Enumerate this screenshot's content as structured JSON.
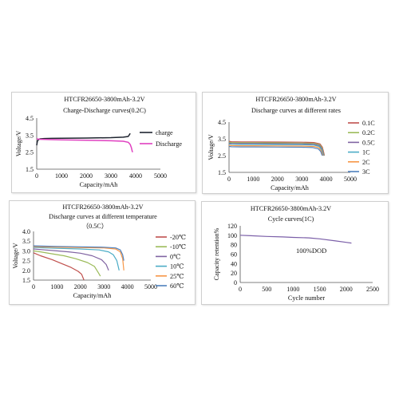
{
  "chart_data": [
    {
      "type": "line",
      "title": "HTCFR26650-3800mAh-3.2V",
      "subtitle": "Charge-Discharge curves(0.2C)",
      "xlabel": "Capacity/mAh",
      "ylabel": "Voltage/V",
      "xlim": [
        0,
        5000
      ],
      "ylim": [
        1.5,
        4.5
      ],
      "xticks": [
        "0",
        "1000",
        "2000",
        "3000",
        "4000",
        "5000"
      ],
      "yticks": [
        "1.5",
        "2.5",
        "3.5",
        "4.5"
      ],
      "legend_position": "right",
      "series": [
        {
          "name": "charge",
          "color": "#1f2430",
          "x": [
            0,
            30,
            80,
            150,
            300,
            600,
            1000,
            2000,
            3000,
            3500,
            3700,
            3780
          ],
          "y": [
            2.9,
            3.15,
            3.25,
            3.28,
            3.3,
            3.31,
            3.32,
            3.33,
            3.35,
            3.38,
            3.42,
            3.6
          ]
        },
        {
          "name": "Discharge",
          "color": "#e040c0",
          "x": [
            0,
            100,
            500,
            1000,
            2000,
            3000,
            3500,
            3700,
            3780,
            3830,
            3860,
            3880
          ],
          "y": [
            3.28,
            3.26,
            3.24,
            3.22,
            3.2,
            3.17,
            3.14,
            3.08,
            2.95,
            2.75,
            2.55,
            2.5
          ]
        }
      ]
    },
    {
      "type": "line",
      "title": "HTCFR26650-3800mAh-3.2V",
      "subtitle": "Discharge curves at different rates",
      "xlabel": "Capacity/mAh",
      "ylabel": "Voltage/V",
      "xlim": [
        0,
        5000
      ],
      "ylim": [
        1.5,
        4.5
      ],
      "xticks": [
        "0",
        "1000",
        "2000",
        "3000",
        "4000",
        "5000"
      ],
      "yticks": [
        "1.5",
        "2.5",
        "3.5",
        "4.5"
      ],
      "legend_position": "right",
      "series": [
        {
          "name": "0.1C",
          "color": "#c0504d",
          "x": [
            0,
            100,
            500,
            1000,
            2000,
            3000,
            3500,
            3750,
            3850,
            3900,
            3930
          ],
          "y": [
            3.35,
            3.33,
            3.32,
            3.32,
            3.31,
            3.3,
            3.28,
            3.2,
            3.0,
            2.7,
            2.5
          ]
        },
        {
          "name": "0.2C",
          "color": "#9bbb59",
          "x": [
            0,
            100,
            500,
            1000,
            2000,
            3000,
            3500,
            3740,
            3840,
            3890,
            3920
          ],
          "y": [
            3.3,
            3.28,
            3.27,
            3.27,
            3.26,
            3.25,
            3.23,
            3.15,
            2.95,
            2.65,
            2.5
          ]
        },
        {
          "name": "0.5C",
          "color": "#8064a2",
          "x": [
            0,
            100,
            500,
            1000,
            2000,
            3000,
            3500,
            3730,
            3830,
            3880,
            3910
          ],
          "y": [
            3.25,
            3.23,
            3.22,
            3.22,
            3.21,
            3.2,
            3.18,
            3.1,
            2.9,
            2.62,
            2.5
          ]
        },
        {
          "name": "1C",
          "color": "#4bacc6",
          "x": [
            0,
            100,
            500,
            1000,
            2000,
            3000,
            3500,
            3720,
            3820,
            3870,
            3900
          ],
          "y": [
            3.2,
            3.18,
            3.17,
            3.17,
            3.16,
            3.15,
            3.13,
            3.05,
            2.85,
            2.6,
            2.5
          ]
        },
        {
          "name": "2C",
          "color": "#f79646",
          "x": [
            0,
            100,
            500,
            1000,
            2000,
            3000,
            3500,
            3700,
            3800,
            3850,
            3880
          ],
          "y": [
            3.12,
            3.1,
            3.09,
            3.09,
            3.08,
            3.07,
            3.05,
            2.98,
            2.8,
            2.58,
            2.5
          ]
        },
        {
          "name": "3C",
          "color": "#4f81bd",
          "x": [
            0,
            100,
            500,
            1000,
            2000,
            3000,
            3450,
            3680,
            3780,
            3830,
            3860
          ],
          "y": [
            3.05,
            3.03,
            3.02,
            3.02,
            3.01,
            3.0,
            2.98,
            2.9,
            2.75,
            2.55,
            2.5
          ]
        }
      ]
    },
    {
      "type": "line",
      "title": "HTCFR26650-3800mAh-3.2V",
      "subtitle": "Discharge curves  at different temperature",
      "subtitle2": "（0.5C）",
      "xlabel": "Capacity/mAh",
      "ylabel": "Voltage/V",
      "xlim": [
        0,
        5000
      ],
      "ylim": [
        1.5,
        4.0
      ],
      "xticks": [
        "0",
        "1000",
        "2000",
        "3000",
        "4000",
        "5000"
      ],
      "yticks": [
        "1.5",
        "2.0",
        "2.5",
        "3.0",
        "3.5",
        "4.0"
      ],
      "legend_position": "right",
      "series": [
        {
          "name": "-20℃",
          "color": "#c0504d",
          "x": [
            0,
            300,
            800,
            1200,
            1600,
            1900,
            2050,
            2150
          ],
          "y": [
            2.9,
            2.75,
            2.55,
            2.35,
            2.15,
            1.95,
            1.8,
            1.5
          ]
        },
        {
          "name": "-10℃",
          "color": "#9bbb59",
          "x": [
            0,
            300,
            800,
            1300,
            1800,
            2300,
            2600,
            2750,
            2850
          ],
          "y": [
            3.0,
            2.95,
            2.85,
            2.75,
            2.6,
            2.4,
            2.2,
            1.9,
            1.7
          ]
        },
        {
          "name": "0℃",
          "color": "#8064a2",
          "x": [
            0,
            500,
            1000,
            1500,
            2000,
            2500,
            2900,
            3100,
            3200
          ],
          "y": [
            3.1,
            3.05,
            3.0,
            2.95,
            2.88,
            2.75,
            2.55,
            2.3,
            2.0
          ]
        },
        {
          "name": "10℃",
          "color": "#4bacc6",
          "x": [
            0,
            500,
            1000,
            2000,
            2800,
            3200,
            3400,
            3550,
            3650
          ],
          "y": [
            3.18,
            3.15,
            3.13,
            3.1,
            3.05,
            2.95,
            2.8,
            2.5,
            2.0
          ]
        },
        {
          "name": "25℃",
          "color": "#f79646",
          "x": [
            0,
            500,
            1000,
            2000,
            3000,
            3500,
            3700,
            3800,
            3850
          ],
          "y": [
            3.22,
            3.2,
            3.19,
            3.17,
            3.15,
            3.1,
            2.95,
            2.6,
            2.0
          ]
        },
        {
          "name": "60℃",
          "color": "#4f81bd",
          "x": [
            0,
            500,
            1000,
            2000,
            3000,
            3500,
            3700,
            3800,
            3850
          ],
          "y": [
            3.26,
            3.24,
            3.23,
            3.21,
            3.19,
            3.15,
            3.05,
            2.8,
            2.5
          ]
        }
      ]
    },
    {
      "type": "line",
      "title": "HTCFR26650-3800mAh-3.2V",
      "subtitle": "Cycle curves(1C)",
      "xlabel": "Cycle number",
      "ylabel": "Capacity retention%",
      "annotation": "100%DOD",
      "xlim": [
        0,
        2500
      ],
      "ylim": [
        0,
        120
      ],
      "xticks": [
        "0",
        "500",
        "1000",
        "1500",
        "2000",
        "2500"
      ],
      "yticks": [
        "0",
        "20",
        "40",
        "60",
        "80",
        "100",
        "120"
      ],
      "series": [
        {
          "name": "",
          "color": "#7b5fa8",
          "x": [
            0,
            200,
            500,
            800,
            1000,
            1300,
            1500,
            1800,
            2000,
            2100
          ],
          "y": [
            100,
            99,
            97.5,
            96.5,
            95.5,
            94.5,
            92.5,
            88,
            85,
            83.5
          ]
        }
      ]
    }
  ]
}
